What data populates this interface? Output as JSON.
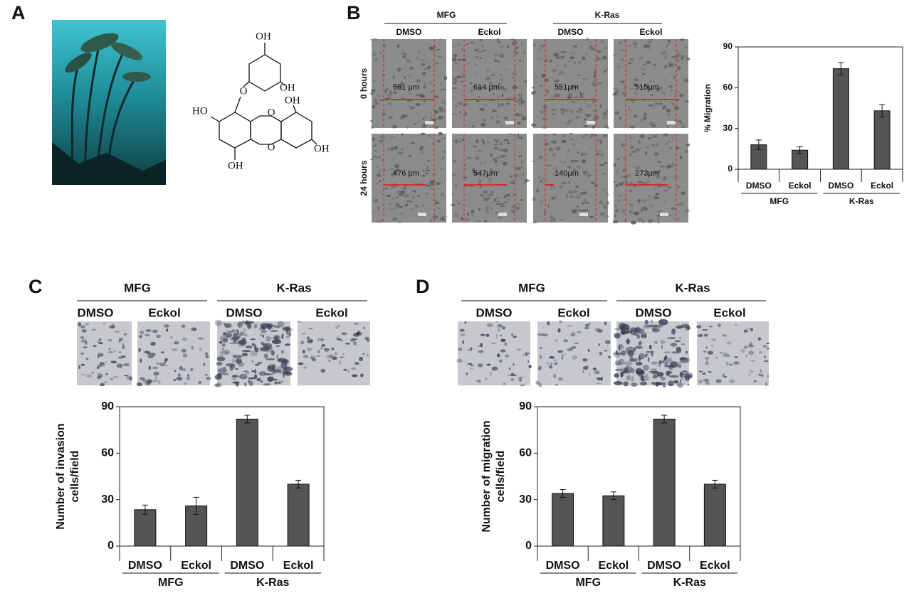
{
  "panels": {
    "A": {
      "label": "A",
      "structure": {
        "atoms": [
          "OH",
          "OH",
          "O",
          "HO",
          "O",
          "OH",
          "O",
          "OH",
          "OH"
        ]
      }
    },
    "B": {
      "label": "B",
      "groups": [
        "MFG",
        "K-Ras"
      ],
      "columns": [
        "DMSO",
        "Eckol",
        "DMSO",
        "Eckol"
      ],
      "rows": [
        "0 hours",
        "24 hours"
      ],
      "measurements": [
        [
          "581 μm",
          "614 μm",
          "551μm",
          "515μm"
        ],
        [
          "476 μm",
          "547μm",
          "140μm",
          "273μm"
        ]
      ]
    },
    "C": {
      "label": "C",
      "groups": [
        "MFG",
        "K-Ras"
      ],
      "columns": [
        "DMSO",
        "Eckol",
        "DMSO",
        "Eckol"
      ]
    },
    "D": {
      "label": "D",
      "groups": [
        "MFG",
        "K-Ras"
      ],
      "columns": [
        "DMSO",
        "Eckol",
        "DMSO",
        "Eckol"
      ]
    }
  },
  "chart_data": [
    {
      "type": "bar",
      "ylabel": "% Migration",
      "categories": [
        "DMSO",
        "Eckol",
        "DMSO",
        "Eckol"
      ],
      "groups": [
        "MFG",
        "K-Ras"
      ],
      "values": [
        18,
        14,
        74,
        43
      ],
      "errors": [
        3.5,
        2.5,
        4.5,
        4.5
      ],
      "color": "#555555",
      "ylim": [
        0,
        90
      ],
      "yticks": [
        0,
        30,
        60,
        90
      ]
    },
    {
      "type": "bar",
      "ylabel": [
        "Number of invasion",
        "cells/field"
      ],
      "categories": [
        "DMSO",
        "Eckol",
        "DMSO",
        "Eckol"
      ],
      "groups": [
        "MFG",
        "K-Ras"
      ],
      "values": [
        23.5,
        26,
        82,
        40
      ],
      "errors": [
        3,
        5.5,
        2.5,
        2.5
      ],
      "color": "#555555",
      "ylim": [
        0,
        90
      ],
      "yticks": [
        0,
        30,
        60,
        90
      ]
    },
    {
      "type": "bar",
      "ylabel": [
        "Number of migration",
        "cells/field"
      ],
      "categories": [
        "DMSO",
        "Eckol",
        "DMSO",
        "Eckol"
      ],
      "groups": [
        "MFG",
        "K-Ras"
      ],
      "values": [
        34,
        32.5,
        82,
        40
      ],
      "errors": [
        2.5,
        2.5,
        2.5,
        2.5
      ],
      "color": "#555555",
      "ylim": [
        0,
        90
      ],
      "yticks": [
        0,
        30,
        60,
        90
      ]
    }
  ]
}
